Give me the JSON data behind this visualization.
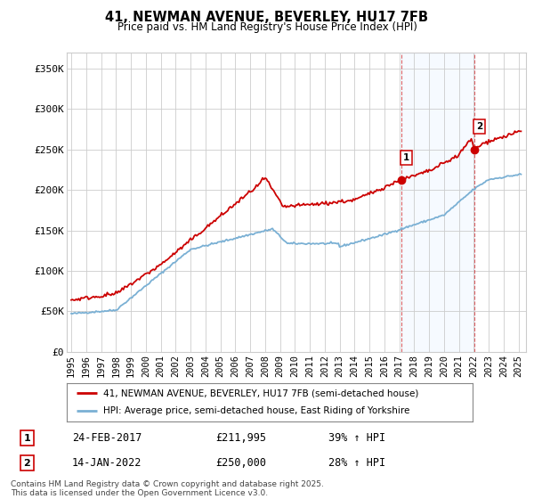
{
  "title": "41, NEWMAN AVENUE, BEVERLEY, HU17 7FB",
  "subtitle": "Price paid vs. HM Land Registry's House Price Index (HPI)",
  "ylabel_ticks": [
    "£0",
    "£50K",
    "£100K",
    "£150K",
    "£200K",
    "£250K",
    "£300K",
    "£350K"
  ],
  "ytick_vals": [
    0,
    50000,
    100000,
    150000,
    200000,
    250000,
    300000,
    350000
  ],
  "ylim": [
    0,
    370000
  ],
  "xlim_start": 1994.7,
  "xlim_end": 2025.5,
  "marker1_x": 2017.12,
  "marker1_y": 211995,
  "marker1_label": "1",
  "marker2_x": 2022.04,
  "marker2_y": 250000,
  "marker2_label": "2",
  "legend_line1": "41, NEWMAN AVENUE, BEVERLEY, HU17 7FB (semi-detached house)",
  "legend_line2": "HPI: Average price, semi-detached house, East Riding of Yorkshire",
  "note1_box": "1",
  "note1_date": "24-FEB-2017",
  "note1_price": "£211,995",
  "note1_hpi": "39% ↑ HPI",
  "note2_box": "2",
  "note2_date": "14-JAN-2022",
  "note2_price": "£250,000",
  "note2_hpi": "28% ↑ HPI",
  "copyright": "Contains HM Land Registry data © Crown copyright and database right 2025.\nThis data is licensed under the Open Government Licence v3.0.",
  "line_color_red": "#cc0000",
  "line_color_blue": "#7ab0d4",
  "shading_color": "#ddeeff",
  "grid_color": "#cccccc",
  "background_color": "#ffffff",
  "vline_color": "#cc0000"
}
